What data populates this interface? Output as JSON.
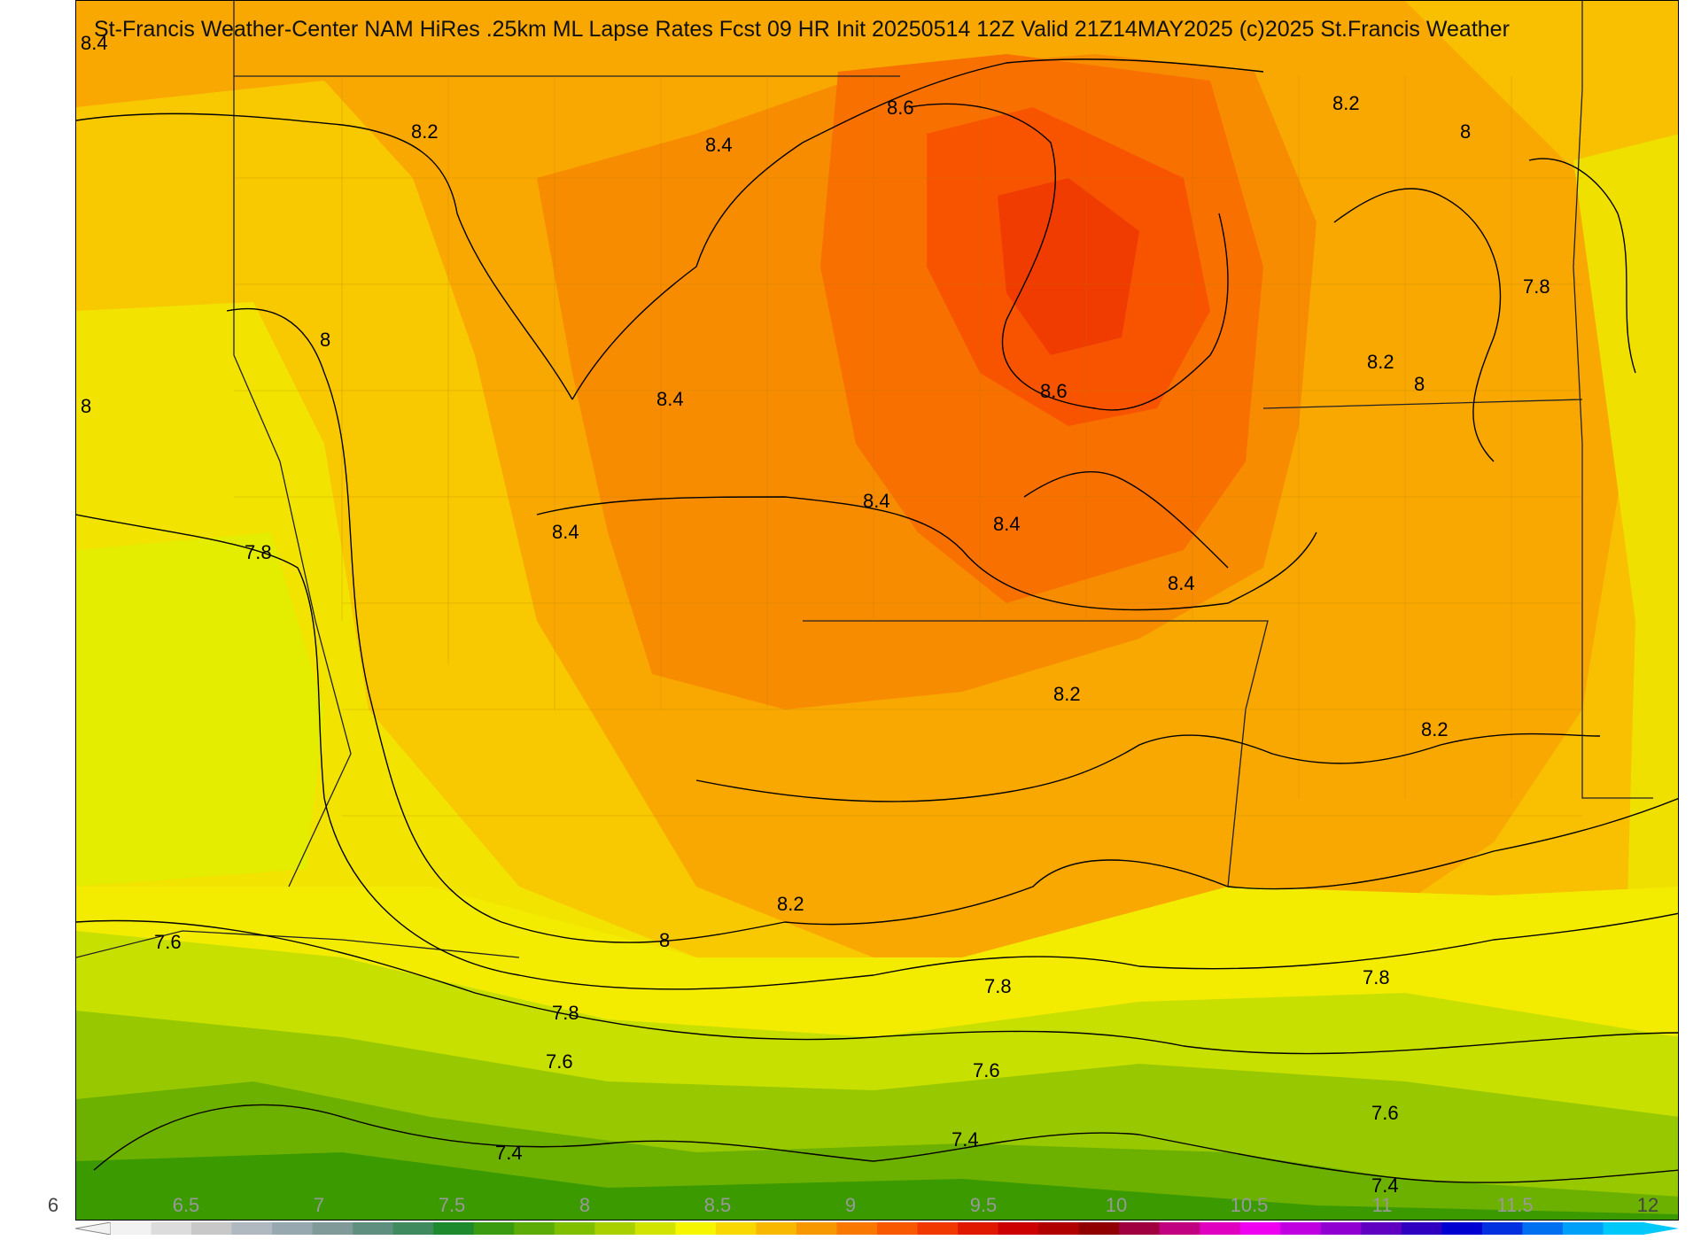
{
  "title": "St-Francis Weather-Center NAM HiRes .25km ML Lapse Rates  Fcst 09 HR Init 20250514 12Z  Valid 21Z14MAY2025    (c)2025 St.Francis Weather",
  "contour_labels": [
    "8.4",
    "8.2",
    "8.4",
    "8.6",
    "8.2",
    "8",
    "8",
    "8.4",
    "8.6",
    "8.4",
    "8.4",
    "8.4",
    "8.4",
    "7.8",
    "8.2",
    "8.2",
    "8",
    "7.8",
    "8.2",
    "8",
    "8.2",
    "8",
    "7.6",
    "7.8",
    "7.8",
    "7.8",
    "7.6",
    "7.6",
    "7.4",
    "7.4",
    "7.6",
    "7.4"
  ],
  "colorbar": {
    "min": 6,
    "max": 12,
    "tick_labels": [
      "6",
      "6.5",
      "7",
      "7.5",
      "8",
      "8.5",
      "9",
      "9.5",
      "10",
      "10.5",
      "11",
      "11.5",
      "12"
    ],
    "colors": [
      "#f2f2f2",
      "#dcdcdc",
      "#c8c8c8",
      "#b0b8c0",
      "#98a8b0",
      "#7f9a98",
      "#5f8f7f",
      "#3f8a5f",
      "#1e8a2e",
      "#3a9a10",
      "#5cac08",
      "#80be00",
      "#a8d000",
      "#d0e400",
      "#f6f600",
      "#f8d800",
      "#f8b800",
      "#f89800",
      "#f87800",
      "#f85800",
      "#f03800",
      "#e01800",
      "#cc0000",
      "#b00000",
      "#900000",
      "#a00040",
      "#c00080",
      "#e000c0",
      "#f000f0",
      "#c000e0",
      "#9000d0",
      "#6000c0",
      "#3000c0",
      "#0000d0",
      "#0030e0",
      "#0070f0",
      "#00a0f8",
      "#00c8f8"
    ]
  }
}
